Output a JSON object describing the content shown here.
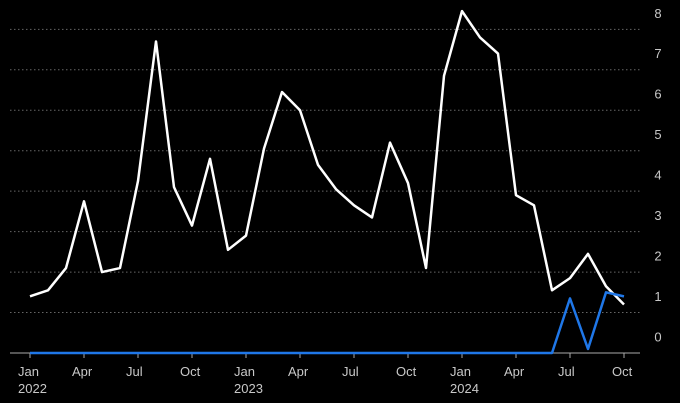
{
  "chart_data": {
    "type": "line",
    "categories": [
      "Jan\n2022",
      null,
      null,
      "Apr",
      null,
      null,
      "Jul",
      null,
      null,
      "Oct",
      null,
      null,
      "Jan\n2023",
      null,
      null,
      "Apr",
      null,
      null,
      "Jul",
      null,
      null,
      "Oct",
      null,
      null,
      "Jan\n2024",
      null,
      null,
      "Apr",
      null,
      null,
      "Jul",
      null,
      null,
      "Oct"
    ],
    "series": [
      {
        "color": "#ffffff",
        "values": [
          1.4,
          1.55,
          2.1,
          3.75,
          2.0,
          2.1,
          4.25,
          7.7,
          4.1,
          3.15,
          4.8,
          2.55,
          2.9,
          5.05,
          6.45,
          6.0,
          4.65,
          4.05,
          3.65,
          3.35,
          5.2,
          4.2,
          2.1,
          6.85,
          8.45,
          7.8,
          7.4,
          3.9,
          3.65,
          1.55,
          1.85,
          2.45,
          1.65,
          1.2
        ]
      },
      {
        "color": "#1f77e8",
        "values": [
          0,
          0,
          0,
          0,
          0,
          0,
          0,
          0,
          0,
          0,
          0,
          0,
          0,
          0,
          0,
          0,
          0,
          0,
          0,
          0,
          0,
          0,
          0,
          0,
          0,
          0,
          0,
          0,
          0,
          0,
          1.35,
          0.1,
          1.5,
          1.4
        ]
      }
    ],
    "ylim": [
      0,
      8.7
    ],
    "yticks": [
      0,
      1,
      2,
      3,
      4,
      5,
      6,
      7,
      8
    ],
    "grid": true
  }
}
